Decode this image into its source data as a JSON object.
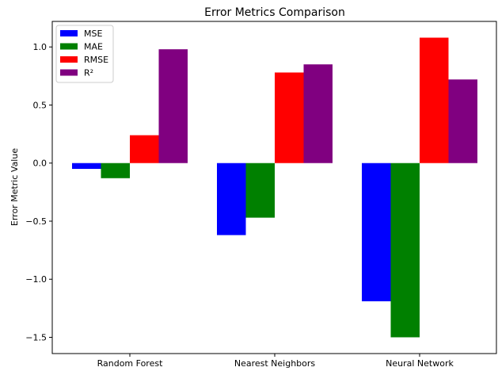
{
  "chart_data": {
    "type": "bar",
    "title": "Error Metrics Comparison",
    "xlabel": "",
    "ylabel": "Error Metric Value",
    "categories": [
      "Random Forest",
      "Nearest Neighbors",
      "Neural Network"
    ],
    "series": [
      {
        "name": "MSE",
        "color": "#0000ff",
        "values": [
          -0.05,
          -0.62,
          -1.19
        ]
      },
      {
        "name": "MAE",
        "color": "#008000",
        "values": [
          -0.13,
          -0.47,
          -1.5
        ]
      },
      {
        "name": "RMSE",
        "color": "#ff0000",
        "values": [
          0.24,
          0.78,
          1.08
        ]
      },
      {
        "name": "R²",
        "color": "#800080",
        "values": [
          0.98,
          0.85,
          0.72
        ]
      }
    ],
    "ylim": [
      -1.64,
      1.22
    ],
    "yticks": [
      -1.5,
      -1.0,
      -0.5,
      0.0,
      0.5,
      1.0
    ],
    "ytick_labels": [
      "−1.5",
      "−1.0",
      "−0.5",
      "0.0",
      "0.5",
      "1.0"
    ],
    "grid": false,
    "legend_position": "top-left"
  }
}
